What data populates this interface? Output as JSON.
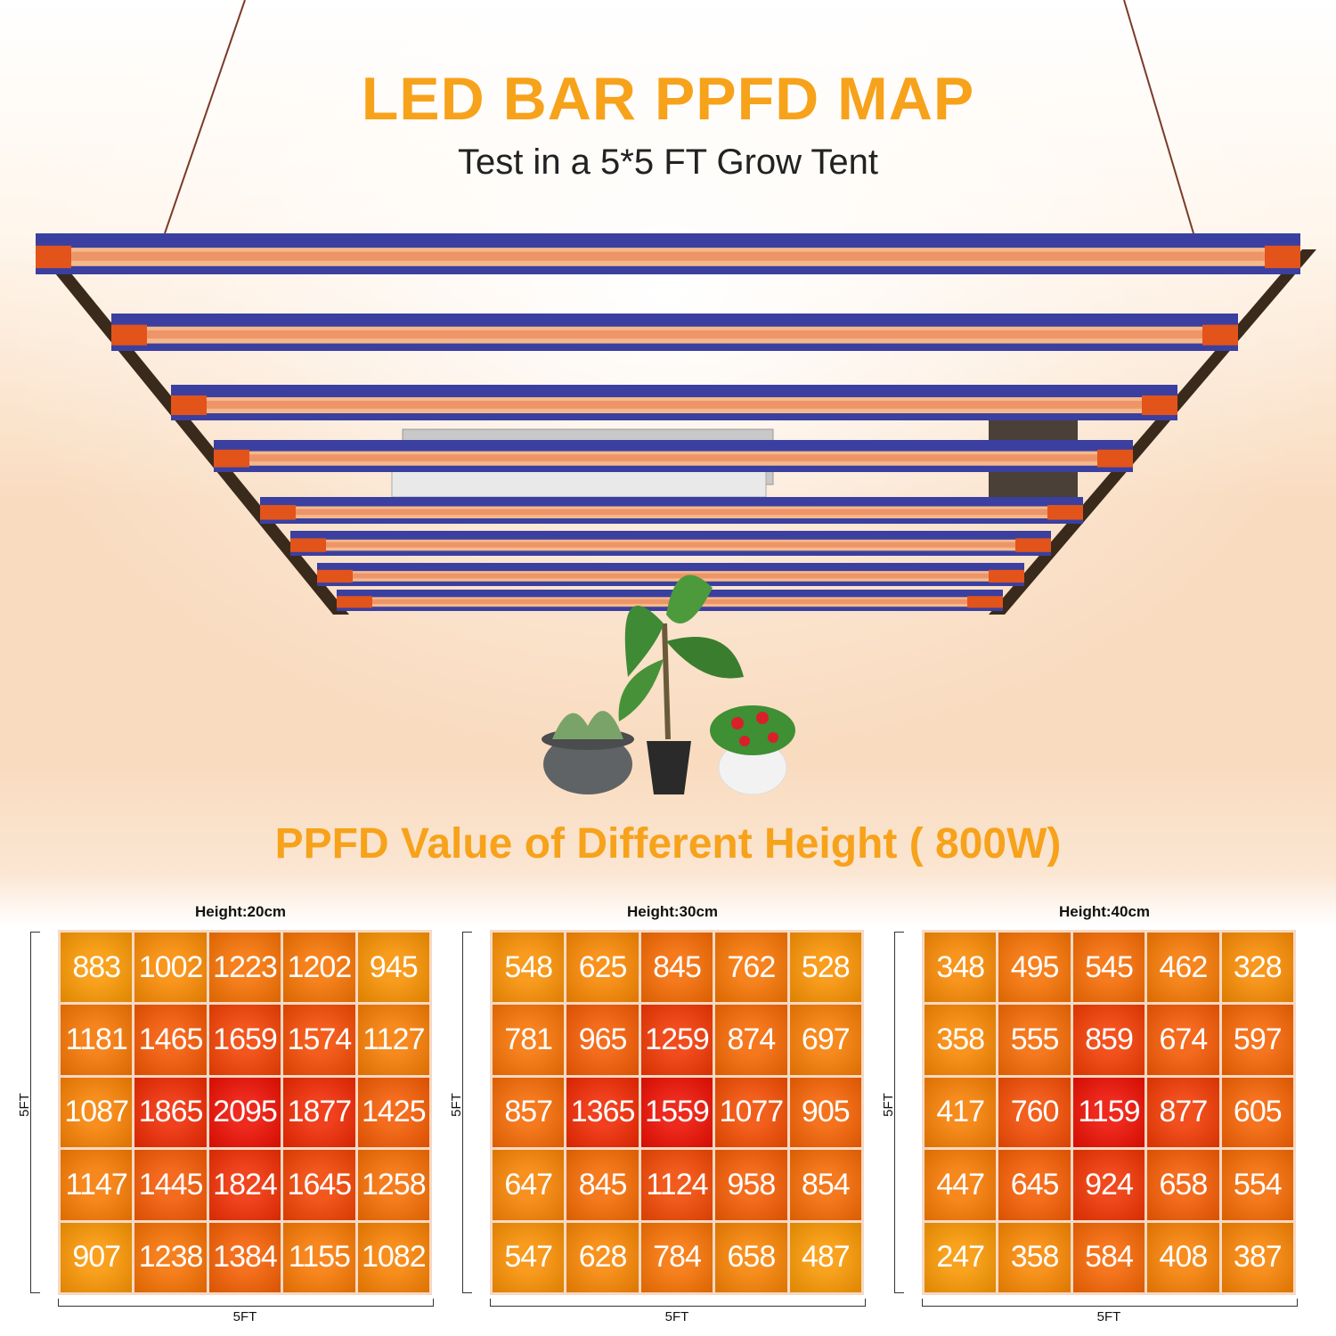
{
  "header": {
    "title": "LED BAR PPFD MAP",
    "subtitle": "Test in a 5*5 FT Grow Tent"
  },
  "section_title": "PPFD Value of Different Height ( 800W)",
  "colors": {
    "accent": "#f7a21b",
    "bar_frame": "#3b3fa0",
    "bar_end": "#e2541a",
    "cell_low": "#f9a21e",
    "cell_high": "#ee2a1e"
  },
  "maps": [
    {
      "height_label": "Height:20cm",
      "side_label": "5FT",
      "bottom_label": "5FT",
      "rows": [
        [
          "883",
          "1002",
          "1223",
          "1202",
          "945"
        ],
        [
          "1181",
          "1465",
          "1659",
          "1574",
          "1127"
        ],
        [
          "1087",
          "1865",
          "2095",
          "1877",
          "1425"
        ],
        [
          "1147",
          "1445",
          "1824",
          "1645",
          "1258"
        ],
        [
          "907",
          "1238",
          "1384",
          "1155",
          "1082"
        ]
      ]
    },
    {
      "height_label": "Height:30cm",
      "side_label": "5FT",
      "bottom_label": "5FT",
      "rows": [
        [
          "548",
          "625",
          "845",
          "762",
          "528"
        ],
        [
          "781",
          "965",
          "1259",
          "874",
          "697"
        ],
        [
          "857",
          "1365",
          "1559",
          "1077",
          "905"
        ],
        [
          "647",
          "845",
          "1124",
          "958",
          "854"
        ],
        [
          "547",
          "628",
          "784",
          "658",
          "487"
        ]
      ]
    },
    {
      "height_label": "Height:40cm",
      "side_label": "5FT",
      "bottom_label": "5FT",
      "rows": [
        [
          "348",
          "495",
          "545",
          "462",
          "328"
        ],
        [
          "358",
          "555",
          "859",
          "674",
          "597"
        ],
        [
          "417",
          "760",
          "1159",
          "877",
          "605"
        ],
        [
          "447",
          "645",
          "924",
          "658",
          "554"
        ],
        [
          "247",
          "358",
          "584",
          "408",
          "387"
        ]
      ]
    }
  ]
}
